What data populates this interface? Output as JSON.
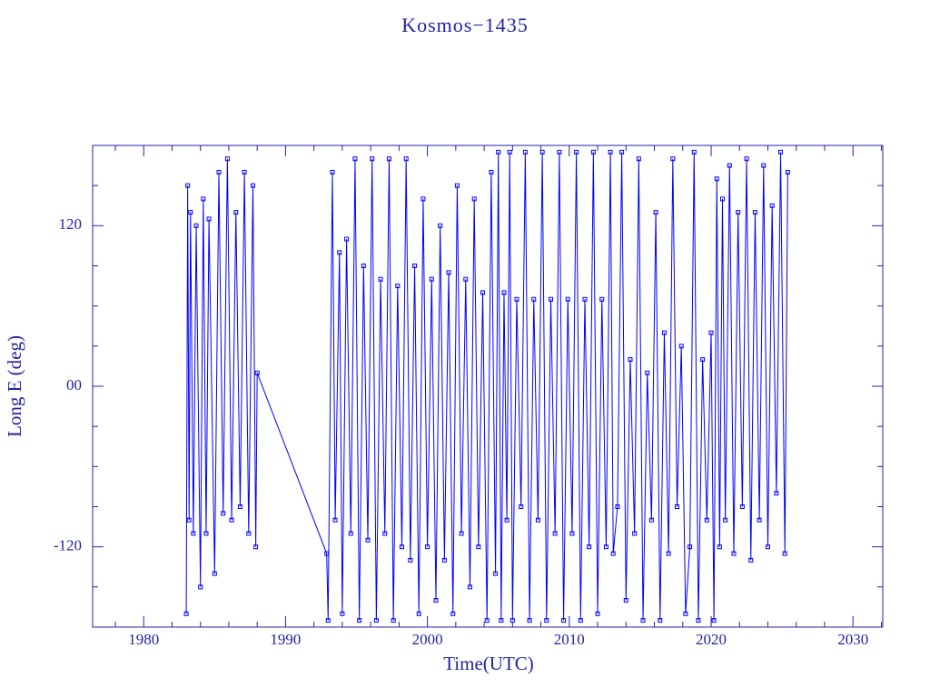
{
  "chart_data": {
    "type": "line",
    "title": "Kosmos−1435",
    "x_label": "Time(UTC)",
    "y_label": "Long E (deg)",
    "marker": "square",
    "axis_color": "#2323a8",
    "xlim": [
      1976.4,
      2032.1
    ],
    "ylim": [
      -180,
      180
    ],
    "xticks": [
      1980,
      1990,
      2000,
      2010,
      2020,
      2030
    ],
    "xminorticks": [
      1978,
      1982,
      1984,
      1986,
      1988,
      1992,
      1994,
      1996,
      1998,
      2002,
      2004,
      2006,
      2008,
      2012,
      2014,
      2016,
      2018,
      2022,
      2024,
      2026,
      2028,
      2032
    ],
    "yticks": [
      -120,
      {
        "value": 0,
        "label": "00"
      },
      120
    ],
    "yminorticks": [
      -150,
      -90,
      -60,
      -30,
      30,
      60,
      90,
      150
    ],
    "series": [
      {
        "color": "#0000ff",
        "x": [
          1983.0,
          1983.1,
          1983.2,
          1983.3,
          1983.5,
          1983.7,
          1984.0,
          1984.2,
          1984.4,
          1984.6,
          1985.0,
          1985.3,
          1985.6,
          1985.9,
          1986.2,
          1986.5,
          1986.8,
          1987.1,
          1987.4,
          1987.7,
          1987.9,
          1988.0,
          1992.9,
          1993.0,
          1993.3,
          1993.5,
          1993.8,
          1994.0,
          1994.3,
          1994.6,
          1994.9,
          1995.2,
          1995.5,
          1995.8,
          1996.1,
          1996.4,
          1996.7,
          1997.0,
          1997.3,
          1997.6,
          1997.9,
          1998.2,
          1998.5,
          1998.8,
          1999.1,
          1999.4,
          1999.7,
          2000.0,
          2000.3,
          2000.6,
          2000.9,
          2001.2,
          2001.5,
          2001.8,
          2002.1,
          2002.4,
          2002.7,
          2003.0,
          2003.3,
          2003.6,
          2003.9,
          2004.2,
          2004.5,
          2004.8,
          2005.0,
          2005.2,
          2005.4,
          2005.6,
          2005.8,
          2006.0,
          2006.3,
          2006.6,
          2006.9,
          2007.2,
          2007.5,
          2007.8,
          2008.1,
          2008.4,
          2008.7,
          2009.0,
          2009.3,
          2009.6,
          2009.9,
          2010.2,
          2010.5,
          2010.8,
          2011.1,
          2011.4,
          2011.7,
          2012.0,
          2012.3,
          2012.6,
          2012.9,
          2013.1,
          2013.4,
          2013.7,
          2014.0,
          2014.3,
          2014.6,
          2014.9,
          2015.2,
          2015.5,
          2015.8,
          2016.1,
          2016.4,
          2016.7,
          2017.0,
          2017.3,
          2017.6,
          2017.9,
          2018.2,
          2018.5,
          2018.8,
          2019.1,
          2019.4,
          2019.7,
          2020.0,
          2020.2,
          2020.4,
          2020.6,
          2020.8,
          2021.0,
          2021.3,
          2021.6,
          2021.9,
          2022.2,
          2022.5,
          2022.8,
          2023.1,
          2023.4,
          2023.7,
          2024.0,
          2024.3,
          2024.6,
          2024.9,
          2025.2,
          2025.4
        ],
        "values": [
          -170,
          150,
          -100,
          130,
          -110,
          120,
          -150,
          140,
          -110,
          125,
          -140,
          160,
          -95,
          170,
          -100,
          130,
          -90,
          160,
          -110,
          150,
          -120,
          10,
          -125,
          -175,
          160,
          -100,
          100,
          -170,
          110,
          -110,
          170,
          -175,
          90,
          -115,
          170,
          -175,
          80,
          -110,
          170,
          -175,
          75,
          -120,
          170,
          -130,
          90,
          -170,
          140,
          -120,
          80,
          -160,
          120,
          -130,
          85,
          -170,
          150,
          -110,
          80,
          -150,
          140,
          -120,
          70,
          -175,
          160,
          -140,
          175,
          -175,
          70,
          -100,
          175,
          -175,
          65,
          -90,
          175,
          -175,
          65,
          -100,
          175,
          -175,
          65,
          -110,
          175,
          -175,
          65,
          -110,
          175,
          -175,
          65,
          -120,
          175,
          -170,
          65,
          -120,
          175,
          -125,
          -90,
          175,
          -160,
          20,
          -110,
          170,
          -175,
          10,
          -100,
          130,
          -175,
          40,
          -125,
          170,
          -90,
          30,
          -170,
          -120,
          175,
          -175,
          20,
          -100,
          40,
          -175,
          155,
          -120,
          140,
          -100,
          165,
          -125,
          130,
          -90,
          170,
          -130,
          130,
          -100,
          165,
          -120,
          135,
          -80,
          175,
          -125,
          160
        ]
      }
    ]
  }
}
